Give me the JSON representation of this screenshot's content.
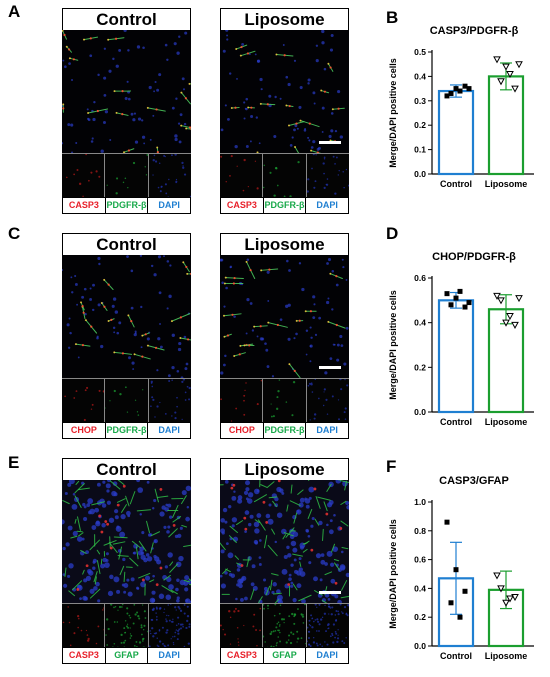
{
  "colors": {
    "red": "#e8202a",
    "green": "#18a94a",
    "blue": "#1f7fd1",
    "control_bar": "#1f7fd1",
    "liposome_bar": "#1b9e2f"
  },
  "rows": [
    {
      "letter": "A",
      "left_title": "Control",
      "right_title": "Liposome",
      "channels": [
        "CASP3",
        "PDGFR-β",
        "DAPI"
      ],
      "tissue": "vessel"
    },
    {
      "letter": "C",
      "left_title": "Control",
      "right_title": "Liposome",
      "channels": [
        "CHOP",
        "PDGFR-β",
        "DAPI"
      ],
      "tissue": "vessel"
    },
    {
      "letter": "E",
      "left_title": "Control",
      "right_title": "Liposome",
      "channels": [
        "CASP3",
        "GFAP",
        "DAPI"
      ],
      "tissue": "glia"
    }
  ],
  "chart_data": [
    {
      "letter": "B",
      "type": "bar",
      "title": "CASP3/PDGFR-β",
      "ylabel": "Merge/DAPI positive cells",
      "categories": [
        "Control",
        "Liposome"
      ],
      "values": [
        0.34,
        0.4
      ],
      "errors": [
        0.025,
        0.055
      ],
      "ylim": [
        0,
        0.5
      ],
      "yticks": [
        "0.0",
        "0.1",
        "0.2",
        "0.3",
        "0.4",
        "0.5"
      ],
      "points": [
        [
          0.32,
          0.35,
          0.36,
          0.33,
          0.34,
          0.35
        ],
        [
          0.47,
          0.44,
          0.35,
          0.38,
          0.41,
          0.45
        ]
      ]
    },
    {
      "letter": "D",
      "type": "bar",
      "title": "CHOP/PDGFR-β",
      "ylabel": "Merge/DAPI positive cells",
      "categories": [
        "Control",
        "Liposome"
      ],
      "values": [
        0.5,
        0.46
      ],
      "errors": [
        0.035,
        0.065
      ],
      "ylim": [
        0,
        0.6
      ],
      "yticks": [
        "0.0",
        "0.2",
        "0.4",
        "0.6"
      ],
      "points": [
        [
          0.53,
          0.51,
          0.47,
          0.48,
          0.54,
          0.49
        ],
        [
          0.52,
          0.4,
          0.39,
          0.5,
          0.43,
          0.51
        ]
      ]
    },
    {
      "letter": "F",
      "type": "bar",
      "title": "CASP3/GFAP",
      "ylabel": "Merge/DAPI positive cells",
      "categories": [
        "Control",
        "Liposome"
      ],
      "values": [
        0.47,
        0.39
      ],
      "errors": [
        0.25,
        0.13
      ],
      "ylim": [
        0,
        1.0
      ],
      "yticks": [
        "0.0",
        "0.2",
        "0.4",
        "0.6",
        "0.8",
        "1.0"
      ],
      "points": [
        [
          0.86,
          0.53,
          0.38,
          0.3,
          0.2
        ],
        [
          0.49,
          0.3,
          0.34,
          0.4,
          0.33
        ]
      ]
    }
  ]
}
